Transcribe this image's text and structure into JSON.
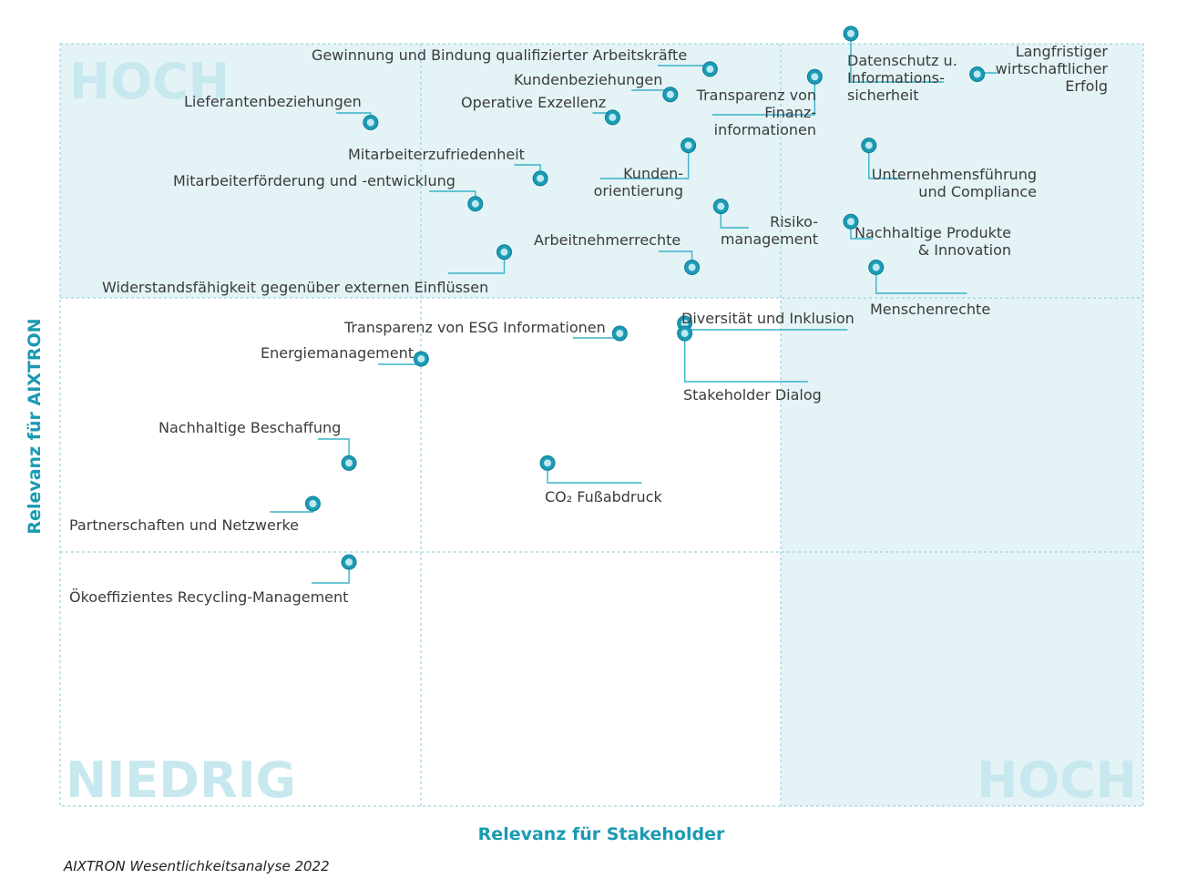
{
  "chart_data": {
    "type": "scatter",
    "xlabel": "Relevanz für Stakeholder",
    "ylabel": "Relevanz für AIXTRON",
    "xlim": [
      0,
      3
    ],
    "ylim": [
      0,
      3
    ],
    "corner_labels": {
      "top_left": "HOCH",
      "bottom_left": "NIEDRIG",
      "bottom_right": "HOCH"
    },
    "points": [
      {
        "x": 1.8,
        "y": 2.9,
        "lines": [
          "Gewinnung und Bindung qualifizierter Arbeitskräfte"
        ]
      },
      {
        "x": 1.69,
        "y": 2.8,
        "lines": [
          "Kundenbeziehungen"
        ]
      },
      {
        "x": 1.53,
        "y": 2.71,
        "lines": [
          "Operative Exzellenz"
        ]
      },
      {
        "x": 0.86,
        "y": 2.69,
        "lines": [
          "Lieferantenbeziehungen"
        ]
      },
      {
        "x": 1.33,
        "y": 2.47,
        "lines": [
          "Mitarbeiterzufriedenheit"
        ]
      },
      {
        "x": 1.15,
        "y": 2.37,
        "lines": [
          "Mitarbeiterförderung und -entwicklung"
        ]
      },
      {
        "x": 1.23,
        "y": 2.18,
        "lines": [
          "Widerstandsfähigkeit gegenüber externen Einflüssen"
        ]
      },
      {
        "x": 1.75,
        "y": 2.12,
        "lines": [
          "Arbeitnehmerrechte"
        ]
      },
      {
        "x": 2.09,
        "y": 2.87,
        "lines": [
          "Transparenz von",
          "Finanz-",
          "informationen"
        ]
      },
      {
        "x": 1.74,
        "y": 2.6,
        "lines": [
          "Kunden-",
          "orientierung"
        ]
      },
      {
        "x": 1.83,
        "y": 2.36,
        "lines": [
          "Risiko-",
          "management"
        ]
      },
      {
        "x": 2.19,
        "y": 3.04,
        "lines": [
          "Datenschutz u.",
          "Informations-",
          "sicherheit"
        ]
      },
      {
        "x": 2.54,
        "y": 2.88,
        "lines": [
          "Langfristiger",
          "wirtschaftlicher",
          "Erfolg"
        ]
      },
      {
        "x": 2.24,
        "y": 2.6,
        "lines": [
          "Unternehmensführung",
          "und Compliance"
        ]
      },
      {
        "x": 2.19,
        "y": 2.3,
        "lines": [
          "Nachhaltige Produkte",
          "& Innovation"
        ]
      },
      {
        "x": 2.26,
        "y": 2.12,
        "lines": [
          "Menschenrechte"
        ]
      },
      {
        "x": 1.73,
        "y": 1.9,
        "lines": [
          "Diversität und Inklusion"
        ]
      },
      {
        "x": 1.73,
        "y": 1.86,
        "lines": [
          "Stakeholder Dialog"
        ]
      },
      {
        "x": 1.55,
        "y": 1.86,
        "lines": [
          "Transparenz von ESG Informationen"
        ]
      },
      {
        "x": 1.0,
        "y": 1.76,
        "lines": [
          "Energiemanagement"
        ]
      },
      {
        "x": 0.8,
        "y": 1.35,
        "lines": [
          "Nachhaltige Beschaffung"
        ]
      },
      {
        "x": 1.35,
        "y": 1.35,
        "lines": [
          "CO₂ Fußabdruck"
        ]
      },
      {
        "x": 0.7,
        "y": 1.19,
        "lines": [
          "Partnerschaften und Netzwerke"
        ]
      },
      {
        "x": 0.8,
        "y": 0.96,
        "lines": [
          "Ökoeffizientes Recycling-Management"
        ]
      }
    ]
  },
  "caption": "AIXTRON Wesentlichkeitsanalyse 2022"
}
